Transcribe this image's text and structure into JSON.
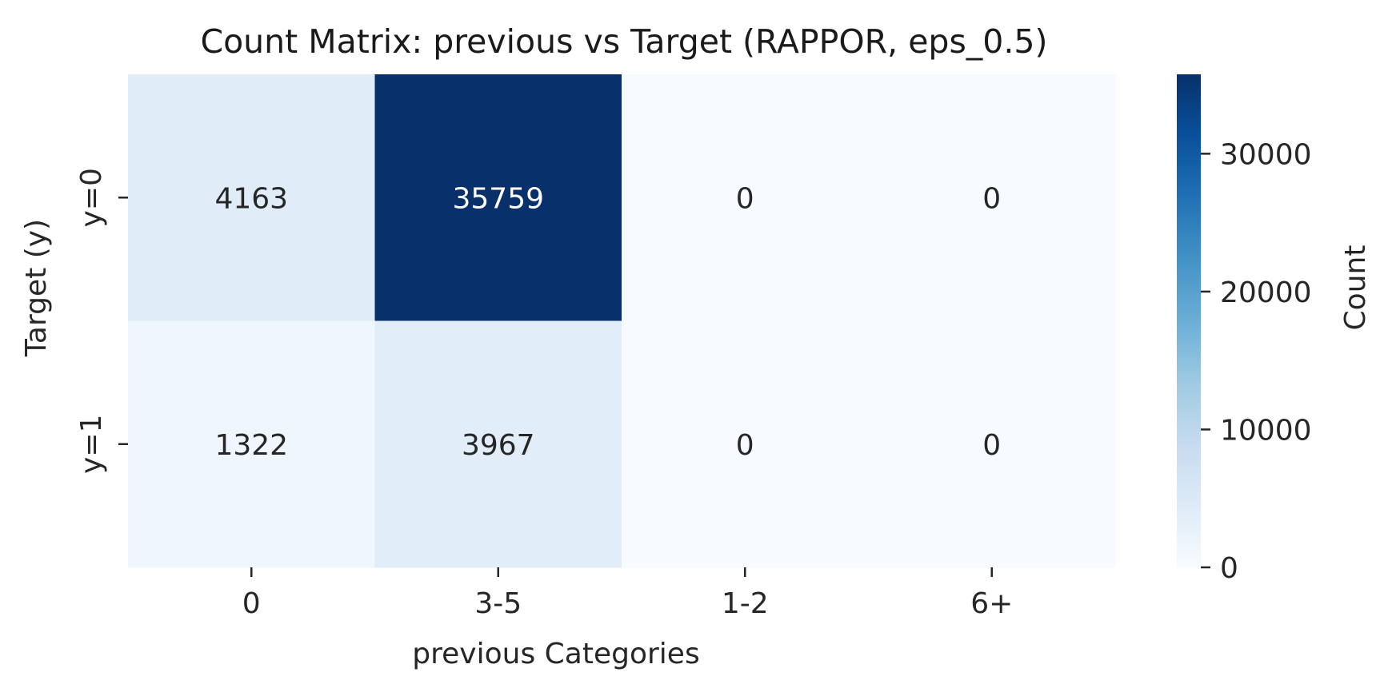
{
  "chart_data": {
    "type": "heatmap",
    "title": "Count Matrix: previous vs Target (RAPPOR, eps_0.5)",
    "xlabel": "previous Categories",
    "ylabel": "Target (y)",
    "x_categories": [
      "0",
      "3-5",
      "1-2",
      "6+"
    ],
    "y_categories": [
      "y=0",
      "y=1"
    ],
    "values": [
      [
        4163,
        35759,
        0,
        0
      ],
      [
        1322,
        3967,
        0,
        0
      ]
    ],
    "colormap": "Blues",
    "colorbar": {
      "label": "Count",
      "range": [
        0,
        35759
      ],
      "ticks": [
        0,
        10000,
        20000,
        30000
      ],
      "tick_labels": [
        "0",
        "10000",
        "20000",
        "30000"
      ]
    },
    "colors": {
      "low": "#f7fbff",
      "high": "#08306b",
      "text_dark": "#262626",
      "text_light": "#ffffff"
    }
  }
}
